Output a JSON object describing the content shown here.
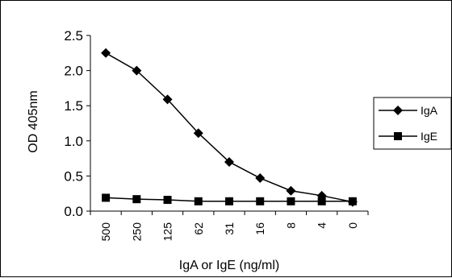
{
  "chart_data": {
    "type": "line",
    "title": "",
    "xlabel": "IgA or IgE (ng/ml)",
    "ylabel": "OD 405nm",
    "ylim": [
      0,
      2.5
    ],
    "yticks": [
      "0.0",
      "0.5",
      "1.0",
      "1.5",
      "2.0",
      "2.5"
    ],
    "categories": [
      "500",
      "250",
      "125",
      "62",
      "31",
      "16",
      "8",
      "4",
      "0"
    ],
    "grid": false,
    "legend_position": "right",
    "series": [
      {
        "name": "IgA",
        "marker": "diamond",
        "color": "#000000",
        "values": [
          2.25,
          2.0,
          1.59,
          1.11,
          0.7,
          0.47,
          0.29,
          0.22,
          0.13
        ]
      },
      {
        "name": "IgE",
        "marker": "square",
        "color": "#000000",
        "values": [
          0.19,
          0.17,
          0.16,
          0.14,
          0.14,
          0.14,
          0.14,
          0.14,
          0.14
        ]
      }
    ]
  }
}
